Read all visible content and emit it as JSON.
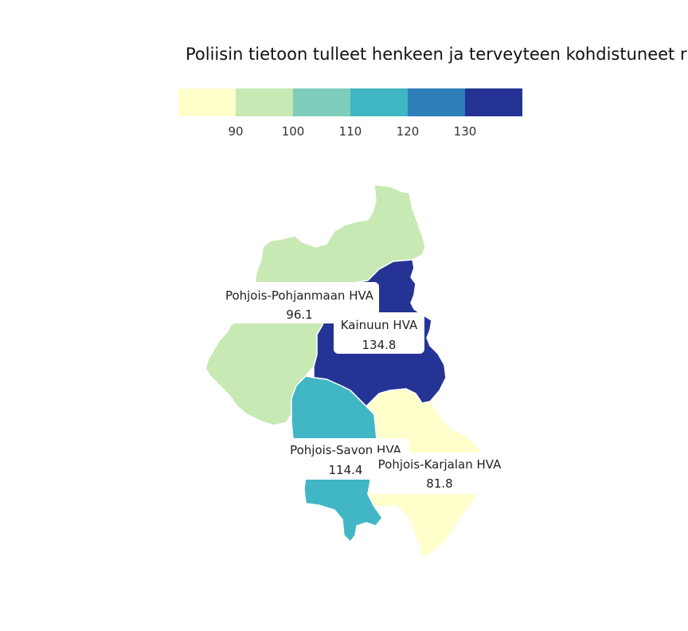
{
  "title": "Poliisin tietoon tulleet henkeen ja terveyteen kohdistuneet ri",
  "legend": {
    "colors": [
      "#ffffcc",
      "#c7e9b4",
      "#7fcdbb",
      "#41b6c4",
      "#2c7fb8",
      "#253494"
    ],
    "ticks": [
      "90",
      "100",
      "110",
      "120",
      "130"
    ]
  },
  "regions": [
    {
      "name": "Pohjois-Pohjanmaan HVA",
      "value": "96.1",
      "color": "#c7e9b4"
    },
    {
      "name": "Kainuun HVA",
      "value": "134.8",
      "color": "#253494"
    },
    {
      "name": "Pohjois-Savon HVA",
      "value": "114.4",
      "color": "#41b6c4"
    },
    {
      "name": "Pohjois-Karjalan HVA",
      "value": "81.8",
      "color": "#ffffcc"
    }
  ]
}
